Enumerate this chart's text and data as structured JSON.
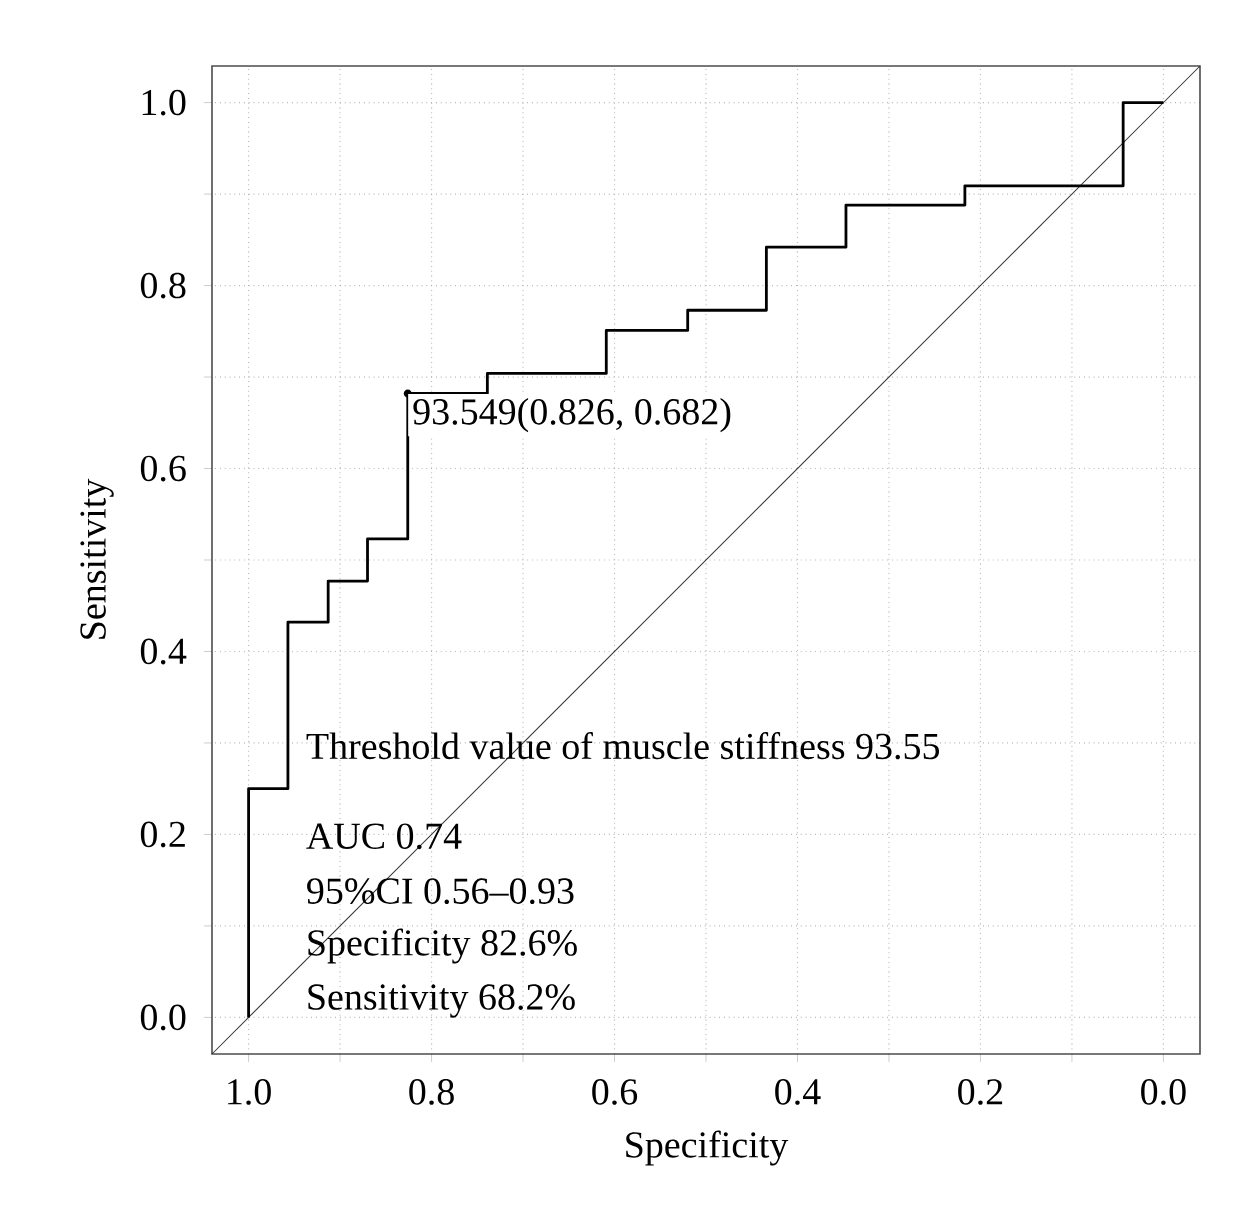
{
  "chart_data": {
    "type": "step",
    "xlabel": "Specificity",
    "ylabel": "Sensitivity",
    "xlim": [
      1.04,
      -0.04
    ],
    "ylim": [
      -0.04,
      1.04
    ],
    "xticks": [
      {
        "value": 1.0,
        "label": "1.0"
      },
      {
        "value": 0.9,
        "label": null
      },
      {
        "value": 0.8,
        "label": "0.8"
      },
      {
        "value": 0.7,
        "label": null
      },
      {
        "value": 0.6,
        "label": "0.6"
      },
      {
        "value": 0.5,
        "label": null
      },
      {
        "value": 0.4,
        "label": "0.4"
      },
      {
        "value": 0.3,
        "label": null
      },
      {
        "value": 0.2,
        "label": "0.2"
      },
      {
        "value": 0.1,
        "label": null
      },
      {
        "value": 0.0,
        "label": "0.0"
      }
    ],
    "yticks": [
      {
        "value": 0.0,
        "label": "0.0"
      },
      {
        "value": 0.1,
        "label": null
      },
      {
        "value": 0.2,
        "label": "0.2"
      },
      {
        "value": 0.3,
        "label": null
      },
      {
        "value": 0.4,
        "label": "0.4"
      },
      {
        "value": 0.5,
        "label": null
      },
      {
        "value": 0.6,
        "label": "0.6"
      },
      {
        "value": 0.7,
        "label": null
      },
      {
        "value": 0.8,
        "label": "0.8"
      },
      {
        "value": 0.9,
        "label": null
      },
      {
        "value": 1.0,
        "label": "1.0"
      }
    ],
    "grid": true,
    "series": [
      {
        "type": "line",
        "color": "#333333",
        "x": [
          1.04,
          -0.04
        ],
        "values": [
          -0.04,
          1.04
        ]
      },
      {
        "color": "#000000",
        "x": [
          1.0,
          1.0,
          0.957,
          0.913,
          0.87,
          0.826,
          0.739,
          0.609,
          0.52,
          0.434,
          0.347,
          0.217,
          0.044,
          0.0
        ],
        "values": [
          0.0,
          0.25,
          0.432,
          0.477,
          0.523,
          0.682,
          0.704,
          0.751,
          0.773,
          0.842,
          0.888,
          0.909,
          1.0,
          1.0
        ]
      }
    ],
    "annotations": [
      {
        "text": "93.549(0.826, 0.682)",
        "x": 0.826,
        "y": 0.682
      },
      "Threshold value of muscle stiffness  93.55",
      "AUC  0.74",
      "95%CI  0.56–0.93",
      "Specificity  82.6%",
      "Sensitivity  68.2%"
    ]
  }
}
